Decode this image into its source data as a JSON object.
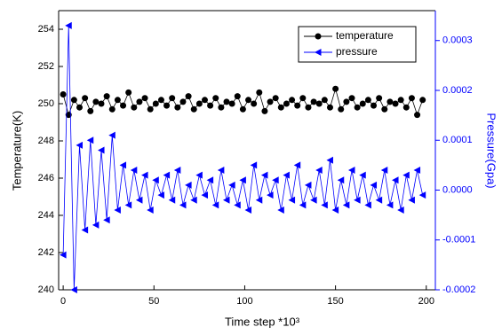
{
  "chart_data": {
    "type": "line",
    "x_label": "Time step *10³",
    "y_label": "Temperature(K)",
    "y2_label": "Pressure(Gpa)",
    "x": [
      0,
      3,
      6,
      9,
      12,
      15,
      18,
      21,
      24,
      27,
      30,
      33,
      36,
      39,
      42,
      45,
      48,
      51,
      54,
      57,
      60,
      63,
      66,
      69,
      72,
      75,
      78,
      81,
      84,
      87,
      90,
      93,
      96,
      99,
      102,
      105,
      108,
      111,
      114,
      117,
      120,
      123,
      126,
      129,
      132,
      135,
      138,
      141,
      144,
      147,
      150,
      153,
      156,
      159,
      162,
      165,
      168,
      171,
      174,
      177,
      180,
      183,
      186,
      189,
      192,
      195,
      198
    ],
    "series": [
      {
        "name": "temperature",
        "color": "#000000",
        "marker": "circle",
        "values": [
          250.5,
          249.4,
          250.2,
          249.8,
          250.3,
          249.6,
          250.1,
          250.0,
          250.4,
          249.7,
          250.2,
          249.9,
          250.6,
          249.8,
          250.1,
          250.3,
          249.7,
          250.0,
          250.2,
          249.9,
          250.3,
          249.8,
          250.1,
          250.4,
          249.7,
          250.0,
          250.2,
          249.9,
          250.3,
          249.8,
          250.1,
          250.0,
          250.4,
          249.7,
          250.2,
          250.0,
          250.6,
          249.6,
          250.1,
          250.3,
          249.8,
          250.0,
          250.2,
          249.9,
          250.3,
          249.8,
          250.1,
          250.0,
          250.2,
          249.8,
          250.8,
          249.7,
          250.1,
          250.3,
          249.8,
          250.0,
          250.2,
          249.9,
          250.3,
          249.7,
          250.1,
          250.0,
          250.2,
          249.8,
          250.3,
          249.4,
          250.2
        ]
      },
      {
        "name": "pressure",
        "color": "#0000ff",
        "marker": "triangle-left",
        "axis": "y2",
        "values": [
          -0.00013,
          0.00033,
          -0.0002,
          9e-05,
          -8e-05,
          0.0001,
          -7e-05,
          8e-05,
          -6e-05,
          0.00011,
          -4e-05,
          5e-05,
          -3e-05,
          4e-05,
          -2e-05,
          3e-05,
          -4e-05,
          2e-05,
          -1e-05,
          3e-05,
          -2e-05,
          4e-05,
          -3e-05,
          1e-05,
          -2e-05,
          3e-05,
          -1e-05,
          2e-05,
          -3e-05,
          4e-05,
          -2e-05,
          1e-05,
          -3e-05,
          2e-05,
          -4e-05,
          5e-05,
          -2e-05,
          3e-05,
          -1e-05,
          2e-05,
          -4e-05,
          3e-05,
          -2e-05,
          5e-05,
          -3e-05,
          1e-05,
          -2e-05,
          4e-05,
          -3e-05,
          6e-05,
          -4e-05,
          2e-05,
          -3e-05,
          4e-05,
          -2e-05,
          3e-05,
          -3e-05,
          1e-05,
          -2e-05,
          4e-05,
          -3e-05,
          2e-05,
          -4e-05,
          3e-05,
          -2e-05,
          4e-05,
          -1e-05
        ]
      }
    ],
    "xlim": [
      -2.5,
      205
    ],
    "xticks": [
      0,
      50,
      100,
      150,
      200
    ],
    "ylim": [
      240,
      255
    ],
    "yticks": [
      240,
      242,
      244,
      246,
      248,
      250,
      252,
      254
    ],
    "y2lim": [
      -0.0002,
      0.00036
    ],
    "y2ticks": [
      -0.0002,
      -0.0001,
      {
        "value": 0,
        "label": "0.0000"
      },
      0.0001,
      0.0002,
      0.0003
    ],
    "y2_color": "#0000ff",
    "legend": "upper right"
  }
}
